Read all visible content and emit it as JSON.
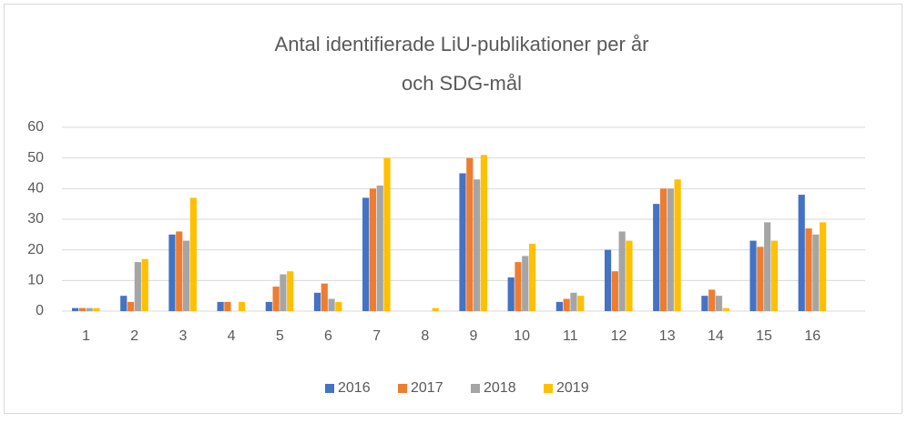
{
  "chart_data": {
    "type": "bar",
    "title": [
      "Antal identifierade LiU-publikationer per år",
      "och SDG-mål"
    ],
    "categories": [
      "1",
      "2",
      "3",
      "4",
      "5",
      "6",
      "7",
      "8",
      "9",
      "10",
      "11",
      "12",
      "13",
      "14",
      "15",
      "16",
      null
    ],
    "series": [
      {
        "name": "2016",
        "color": "#4472c4",
        "values": [
          1,
          5,
          25,
          3,
          3,
          6,
          37,
          0,
          45,
          11,
          3,
          20,
          35,
          5,
          23,
          38,
          null
        ]
      },
      {
        "name": "2017",
        "color": "#ed7d31",
        "values": [
          1,
          3,
          26,
          3,
          8,
          9,
          40,
          0,
          50,
          16,
          4,
          13,
          40,
          7,
          21,
          27,
          null
        ]
      },
      {
        "name": "2018",
        "color": "#a5a5a5",
        "values": [
          1,
          16,
          23,
          0,
          12,
          4,
          41,
          0,
          43,
          18,
          6,
          26,
          40,
          5,
          29,
          25,
          null
        ]
      },
      {
        "name": "2019",
        "color": "#ffc000",
        "values": [
          1,
          17,
          37,
          3,
          13,
          3,
          50,
          1,
          51,
          22,
          5,
          23,
          43,
          1,
          23,
          29,
          null
        ]
      }
    ],
    "ylim": [
      0,
      60
    ],
    "yticks": [
      0,
      10,
      20,
      30,
      40,
      50,
      60
    ],
    "grid": true,
    "legend": "bottom"
  }
}
